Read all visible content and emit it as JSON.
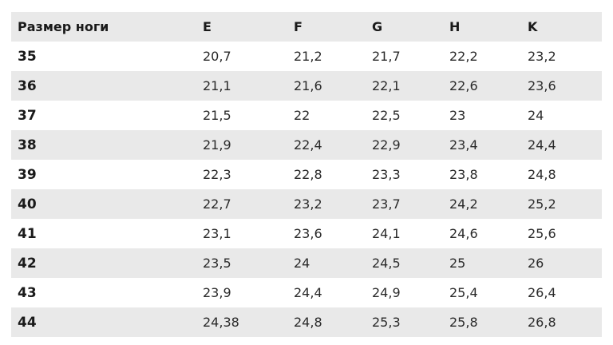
{
  "table": {
    "headers": [
      "Размер ноги",
      "E",
      "F",
      "G",
      "H",
      "K"
    ],
    "rows": [
      [
        "35",
        "20,7",
        "21,2",
        "21,7",
        "22,2",
        "23,2"
      ],
      [
        "36",
        "21,1",
        "21,6",
        "22,1",
        "22,6",
        "23,6"
      ],
      [
        "37",
        "21,5",
        "22",
        "22,5",
        "23",
        "24"
      ],
      [
        "38",
        "21,9",
        "22,4",
        "22,9",
        "23,4",
        "24,4"
      ],
      [
        "39",
        "22,3",
        "22,8",
        "23,3",
        "23,8",
        "24,8"
      ],
      [
        "40",
        "22,7",
        "23,2",
        "23,7",
        "24,2",
        "25,2"
      ],
      [
        "41",
        "23,1",
        "23,6",
        "24,1",
        "24,6",
        "25,6"
      ],
      [
        "42",
        "23,5",
        "24",
        "24,5",
        "25",
        "26"
      ],
      [
        "43",
        "23,9",
        "24,4",
        "24,9",
        "25,4",
        "26,4"
      ],
      [
        "44",
        "24,38",
        "24,8",
        "25,3",
        "25,8",
        "26,8"
      ]
    ]
  },
  "colors": {
    "shaded_row": "#e9e9e9",
    "text": "#1a1a1a"
  }
}
